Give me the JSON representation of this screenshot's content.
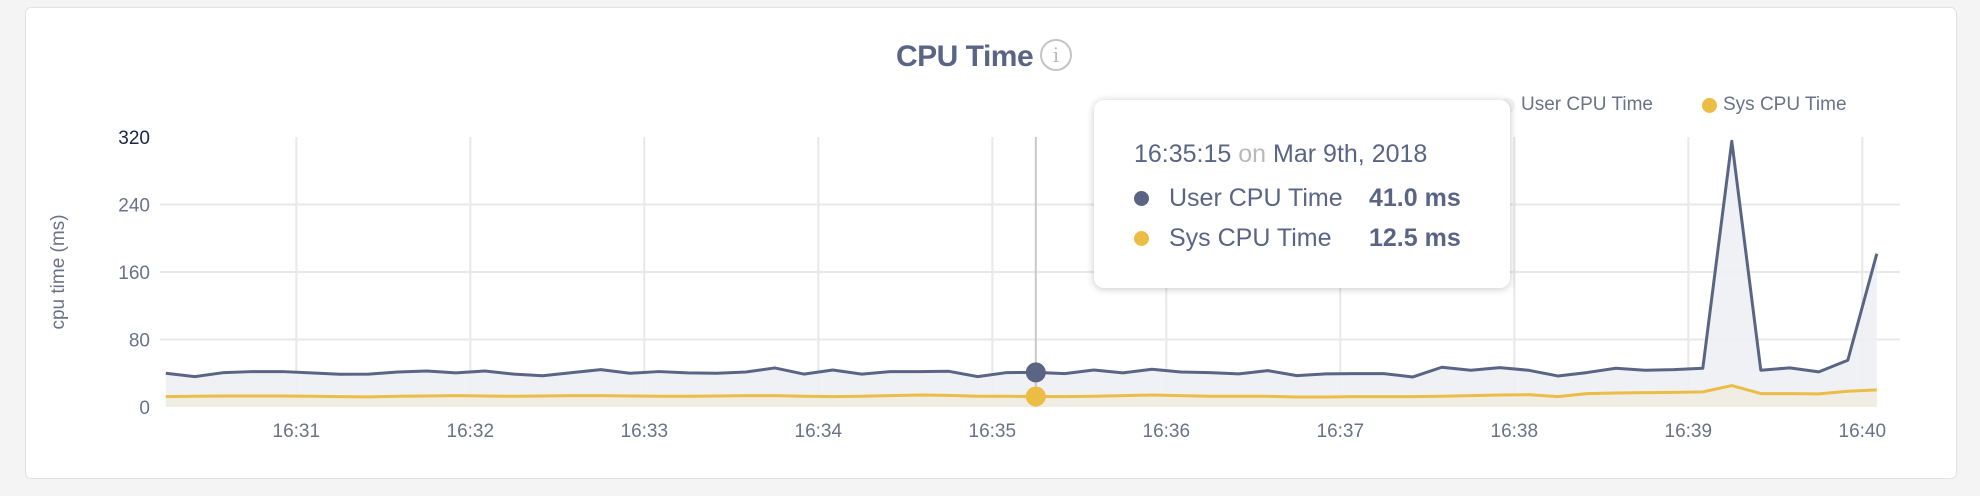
{
  "colors": {
    "user": "#5a6585",
    "user_fill": "#eef0f3",
    "sys": "#ecbd45",
    "sys_fill": "#efece3",
    "grid": "#e8e8e8",
    "text": "#6a7289"
  },
  "header": {
    "title": "CPU Time",
    "info_icon": "info-icon"
  },
  "tooltip": {
    "time": "16:35:15",
    "on": "on",
    "date": "Mar 9th, 2018",
    "rows": [
      {
        "label": "User CPU Time",
        "value": "41.0 ms"
      },
      {
        "label": "Sys CPU Time",
        "value": "12.5 ms"
      }
    ]
  },
  "chart_data": {
    "type": "area",
    "title": "CPU Time",
    "xlabel": "",
    "ylabel": "cpu time (ms)",
    "ylim": [
      0,
      320
    ],
    "yticks": [
      "0",
      "80",
      "160",
      "240",
      "320"
    ],
    "xlim": [
      "16:30:13",
      "16:40:13"
    ],
    "xticks": [
      "16:31",
      "16:32",
      "16:33",
      "16:34",
      "16:35",
      "16:36",
      "16:37",
      "16:38",
      "16:39",
      "16:40"
    ],
    "grid": true,
    "legend": "top-right",
    "x_start": "16:30:15",
    "x_step_seconds": 10,
    "highlight_time": "16:35:15",
    "series": [
      {
        "name": "User CPU Time",
        "values": [
          40,
          36,
          40.8,
          42,
          42,
          40.4,
          38.8,
          39,
          41.5,
          42.7,
          40.4,
          42.7,
          39,
          37,
          40.8,
          44.3,
          40,
          42,
          40.4,
          40,
          41.5,
          46.3,
          39,
          43.9,
          39,
          42,
          42,
          42.3,
          36,
          40.8,
          41.0,
          39.6,
          43.9,
          40.4,
          44.7,
          41.5,
          40.8,
          39.2,
          43.1,
          37.2,
          39.2,
          39.6,
          39.6,
          35.6,
          47.1,
          43.5,
          46.7,
          43.5,
          36.8,
          40.8,
          45.9,
          43.5,
          44.3,
          45.9,
          315,
          43.6,
          46.4,
          41.6,
          55.4,
          181.7
        ]
      },
      {
        "name": "Sys CPU Time",
        "values": [
          12.3,
          12.7,
          13,
          13,
          13,
          12.7,
          12.3,
          12,
          12.7,
          13.1,
          13.5,
          13,
          12.7,
          13.1,
          13.5,
          13.5,
          13.1,
          12.7,
          12.7,
          13.1,
          13.5,
          13.5,
          12.7,
          12.3,
          12.7,
          13.5,
          14.2,
          13.8,
          12.7,
          12.7,
          12.5,
          12.3,
          12.7,
          13.5,
          14.2,
          13.5,
          12.7,
          12.7,
          12.7,
          11.9,
          11.9,
          12.3,
          12.3,
          12.3,
          12.7,
          13.5,
          14.2,
          14.6,
          12.3,
          15.8,
          16.6,
          17,
          17.4,
          17.9,
          25.4,
          15.9,
          15.9,
          15.5,
          18.6,
          20.3
        ]
      }
    ]
  }
}
